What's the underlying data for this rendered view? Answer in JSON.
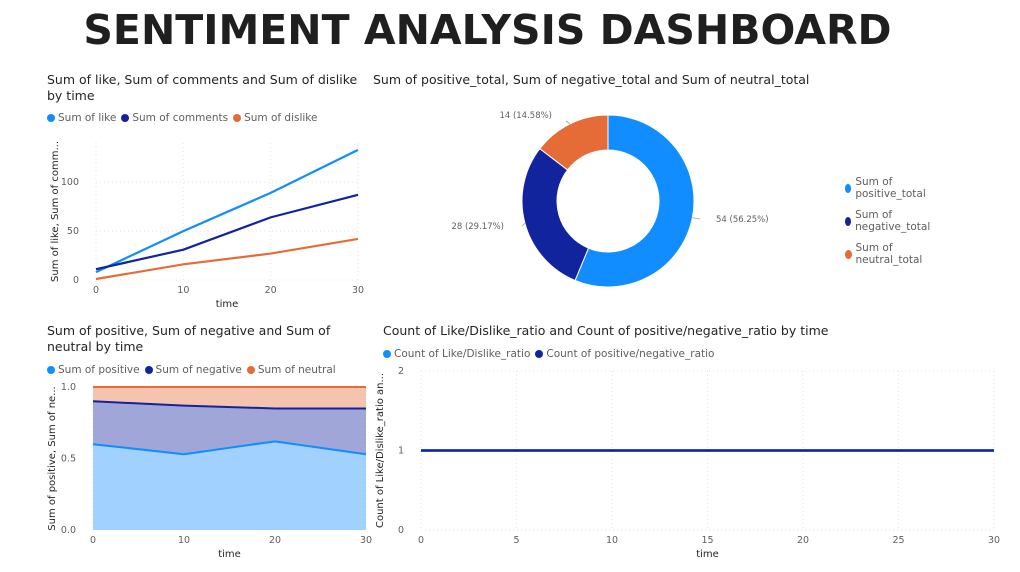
{
  "page_title": "SENTIMENT ANALYSIS DASHBOARD",
  "chart_data": [
    {
      "type": "line",
      "title": "Sum of like, Sum of comments and Sum of dislike by time",
      "xlabel": "time",
      "ylabel": "Sum of like, Sum of comm...",
      "x": [
        0,
        10,
        20,
        30
      ],
      "xticks": [
        "0",
        "10",
        "20",
        "30"
      ],
      "yticks": [
        "0",
        "50",
        "100"
      ],
      "ylim": [
        0,
        140
      ],
      "xlim": [
        0,
        30
      ],
      "grid": true,
      "legend_placement": "top-left",
      "series": [
        {
          "name": "Sum of like",
          "color": "#118dff",
          "values": [
            8,
            50,
            89,
            133
          ]
        },
        {
          "name": "Sum of comments",
          "color": "#12239e",
          "values": [
            11,
            31,
            64,
            87
          ]
        },
        {
          "name": "Sum of dislike",
          "color": "#e66c37",
          "values": [
            1,
            16,
            27,
            42
          ]
        }
      ]
    },
    {
      "type": "pie",
      "subtype": "donut",
      "title": "Sum of positive_total, Sum of negative_total and Sum of neutral_total",
      "legend_placement": "right",
      "slices": [
        {
          "name": "Sum of positive_total",
          "value": 54,
          "label": "54 (56.25%)",
          "color": "#118dff"
        },
        {
          "name": "Sum of negative_total",
          "value": 28,
          "label": "28 (29.17%)",
          "color": "#12239e"
        },
        {
          "name": "Sum of neutral_total",
          "value": 14,
          "label": "14 (14.58%)",
          "color": "#e66c37"
        }
      ]
    },
    {
      "type": "area",
      "stacked": true,
      "title": "Sum of positive, Sum of negative and Sum of neutral by time",
      "xlabel": "time",
      "ylabel": "Sum of positive, Sum of ne...",
      "x": [
        0,
        10,
        20,
        30
      ],
      "xticks": [
        "0",
        "10",
        "20",
        "30"
      ],
      "yticks": [
        "0.0",
        "0.5",
        "1.0"
      ],
      "ylim": [
        0,
        1.0
      ],
      "xlim": [
        0,
        30
      ],
      "grid": true,
      "legend_placement": "top-left",
      "series": [
        {
          "name": "Sum of positive",
          "color": "#118dff",
          "fill": "#a0d1ff",
          "values": [
            0.6,
            0.53,
            0.62,
            0.53
          ]
        },
        {
          "name": "Sum of negative",
          "color": "#12239e",
          "fill": "#a0a7d8",
          "values": [
            0.3,
            0.34,
            0.23,
            0.32
          ]
        },
        {
          "name": "Sum of neutral",
          "color": "#e66c37",
          "fill": "#f5c4af",
          "values": [
            0.1,
            0.13,
            0.15,
            0.15
          ]
        }
      ]
    },
    {
      "type": "line",
      "title": "Count of Like/Dislike_ratio and Count of positive/negative_ratio by time",
      "xlabel": "time",
      "ylabel": "Count of Like/Dislike_ratio an...",
      "x": [
        0,
        30
      ],
      "xticks": [
        "0",
        "5",
        "10",
        "15",
        "20",
        "25",
        "30"
      ],
      "yticks": [
        "0",
        "1",
        "2"
      ],
      "ylim": [
        0,
        2
      ],
      "xlim": [
        0,
        30
      ],
      "grid": true,
      "legend_placement": "top-left",
      "series": [
        {
          "name": "Count of Like/Dislike_ratio",
          "color": "#118dff",
          "values": [
            1,
            1
          ]
        },
        {
          "name": "Count of positive/negative_ratio",
          "color": "#12239e",
          "values": [
            1,
            1
          ]
        }
      ]
    }
  ]
}
